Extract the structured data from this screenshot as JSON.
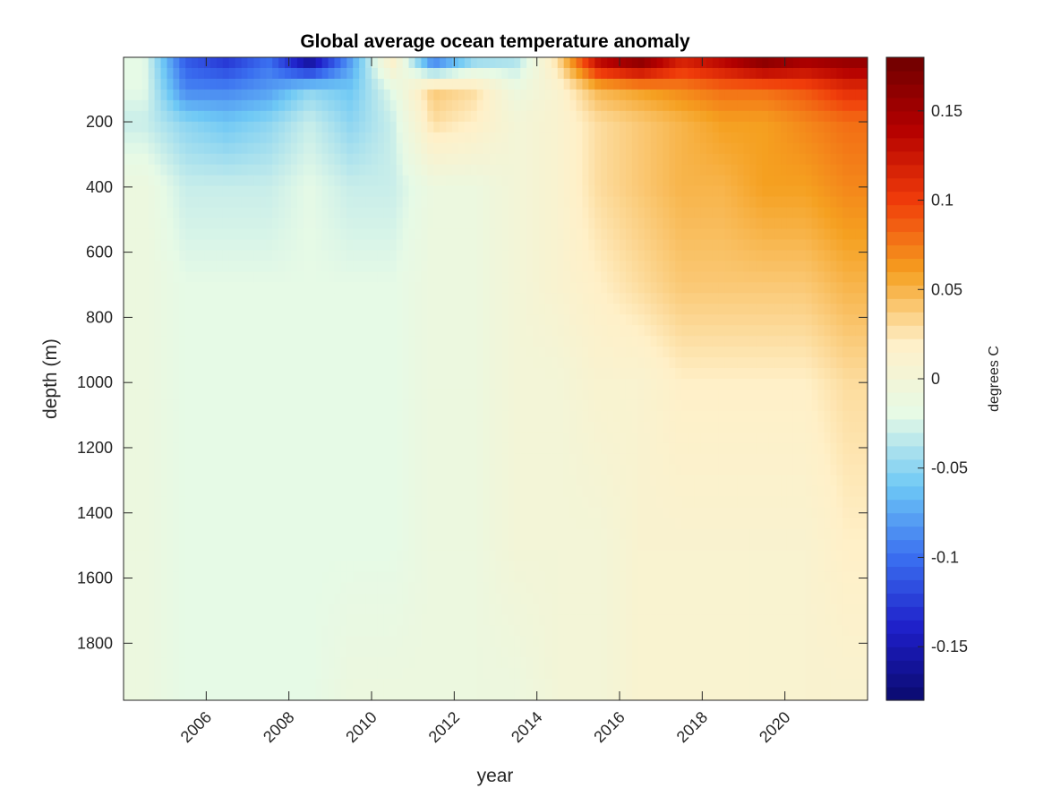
{
  "chart_data": {
    "type": "heatmap",
    "title": "Global average ocean temperature anomaly",
    "xlabel": "year",
    "ylabel": "depth (m)",
    "colorbar_label": "degrees C",
    "x_range": [
      2004.0,
      2022.0
    ],
    "y_range": [
      2,
      1975
    ],
    "y_reversed": true,
    "x_ticks": [
      "2006",
      "2008",
      "2010",
      "2012",
      "2014",
      "2016",
      "2018",
      "2020"
    ],
    "y_ticks": [
      "200",
      "400",
      "600",
      "800",
      "1000",
      "1200",
      "1400",
      "1600",
      "1800"
    ],
    "color_range": [
      -0.18,
      0.18
    ],
    "colorbar_ticks": [
      "-0.15",
      "-0.1",
      "-0.05",
      "0",
      "0.05",
      "0.1",
      "0.15"
    ],
    "colormap": [
      "#0a0a6e",
      "#1e1ec8",
      "#3a6ef0",
      "#6ec8f5",
      "#e6fae6",
      "#fff0c8",
      "#f5a020",
      "#f03c0a",
      "#b40000",
      "#6e0000"
    ],
    "grid": false,
    "depth_levels": [
      10,
      100,
      200,
      400,
      700,
      1000,
      1500,
      1975
    ],
    "anomaly_by_year": [
      {
        "year": 2004.5,
        "values": [
          -0.02,
          -0.02,
          -0.03,
          -0.01,
          -0.01,
          -0.01,
          -0.01,
          -0.01
        ]
      },
      {
        "year": 2005.5,
        "values": [
          -0.11,
          -0.09,
          -0.05,
          -0.03,
          -0.02,
          -0.02,
          -0.02,
          -0.02
        ]
      },
      {
        "year": 2006.5,
        "values": [
          -0.13,
          -0.09,
          -0.06,
          -0.03,
          -0.02,
          -0.02,
          -0.02,
          -0.02
        ]
      },
      {
        "year": 2007.5,
        "values": [
          -0.1,
          -0.08,
          -0.05,
          -0.03,
          -0.02,
          -0.02,
          -0.02,
          -0.02
        ]
      },
      {
        "year": 2008.5,
        "values": [
          -0.17,
          -0.05,
          -0.03,
          -0.02,
          -0.02,
          -0.02,
          -0.02,
          -0.02
        ]
      },
      {
        "year": 2009.5,
        "values": [
          -0.08,
          -0.06,
          -0.05,
          -0.03,
          -0.02,
          -0.02,
          -0.02,
          -0.01
        ]
      },
      {
        "year": 2010.5,
        "values": [
          0.02,
          -0.02,
          -0.03,
          -0.03,
          -0.02,
          -0.02,
          -0.02,
          -0.01
        ]
      },
      {
        "year": 2011.5,
        "values": [
          -0.1,
          0.04,
          0.03,
          -0.01,
          -0.01,
          -0.01,
          -0.01,
          -0.01
        ]
      },
      {
        "year": 2012.5,
        "values": [
          -0.05,
          0.03,
          0.02,
          -0.01,
          -0.01,
          -0.01,
          -0.01,
          -0.01
        ]
      },
      {
        "year": 2013.5,
        "values": [
          -0.04,
          -0.01,
          0.0,
          0.0,
          0.0,
          0.0,
          0.0,
          -0.01
        ]
      },
      {
        "year": 2014.5,
        "values": [
          0.03,
          0.01,
          0.01,
          0.01,
          0.01,
          0.0,
          0.0,
          0.0
        ]
      },
      {
        "year": 2015.5,
        "values": [
          0.14,
          0.05,
          0.03,
          0.03,
          0.02,
          0.01,
          0.0,
          0.0
        ]
      },
      {
        "year": 2016.5,
        "values": [
          0.17,
          0.06,
          0.04,
          0.04,
          0.03,
          0.01,
          0.01,
          0.01
        ]
      },
      {
        "year": 2017.5,
        "values": [
          0.12,
          0.07,
          0.05,
          0.05,
          0.04,
          0.02,
          0.01,
          0.01
        ]
      },
      {
        "year": 2018.5,
        "values": [
          0.14,
          0.08,
          0.06,
          0.05,
          0.04,
          0.02,
          0.01,
          0.01
        ]
      },
      {
        "year": 2019.5,
        "values": [
          0.17,
          0.08,
          0.06,
          0.06,
          0.04,
          0.02,
          0.01,
          0.01
        ]
      },
      {
        "year": 2020.5,
        "values": [
          0.15,
          0.09,
          0.07,
          0.06,
          0.04,
          0.02,
          0.01,
          0.01
        ]
      },
      {
        "year": 2021.5,
        "values": [
          0.16,
          0.11,
          0.08,
          0.07,
          0.05,
          0.03,
          0.02,
          0.01
        ]
      }
    ]
  }
}
